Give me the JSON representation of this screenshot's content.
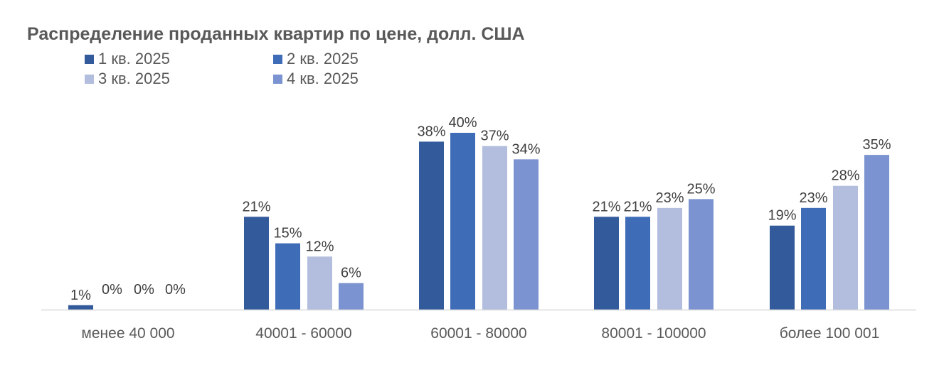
{
  "chart_data": {
    "type": "bar",
    "title": "Распределение проданных квартир по цене, долл. США",
    "xlabel": "",
    "ylabel": "",
    "ylim": [
      0,
      42
    ],
    "grid": false,
    "legend_position": "top-left",
    "categories": [
      "менее 40 000",
      "40001 - 60000",
      "60001 - 80000",
      "80001 - 100000",
      "более 100 001"
    ],
    "series": [
      {
        "name": "1 кв. 2025",
        "color": "#335A9B",
        "values": [
          1,
          21,
          38,
          21,
          19
        ],
        "labels": [
          "1%",
          "21%",
          "38%",
          "21%",
          "19%"
        ]
      },
      {
        "name": "2 кв. 2025",
        "color": "#3F6CB7",
        "values": [
          0,
          15,
          40,
          21,
          23
        ],
        "labels": [
          "0%",
          "15%",
          "40%",
          "21%",
          "23%"
        ]
      },
      {
        "name": "3 кв. 2025",
        "color": "#B3BEDE",
        "values": [
          0,
          12,
          37,
          23,
          28
        ],
        "labels": [
          "0%",
          "12%",
          "37%",
          "23%",
          "28%"
        ]
      },
      {
        "name": "4 кв. 2025",
        "color": "#7B93D0",
        "values": [
          0,
          6,
          34,
          25,
          35
        ],
        "labels": [
          "0%",
          "6%",
          "34%",
          "25%",
          "35%"
        ]
      }
    ]
  }
}
